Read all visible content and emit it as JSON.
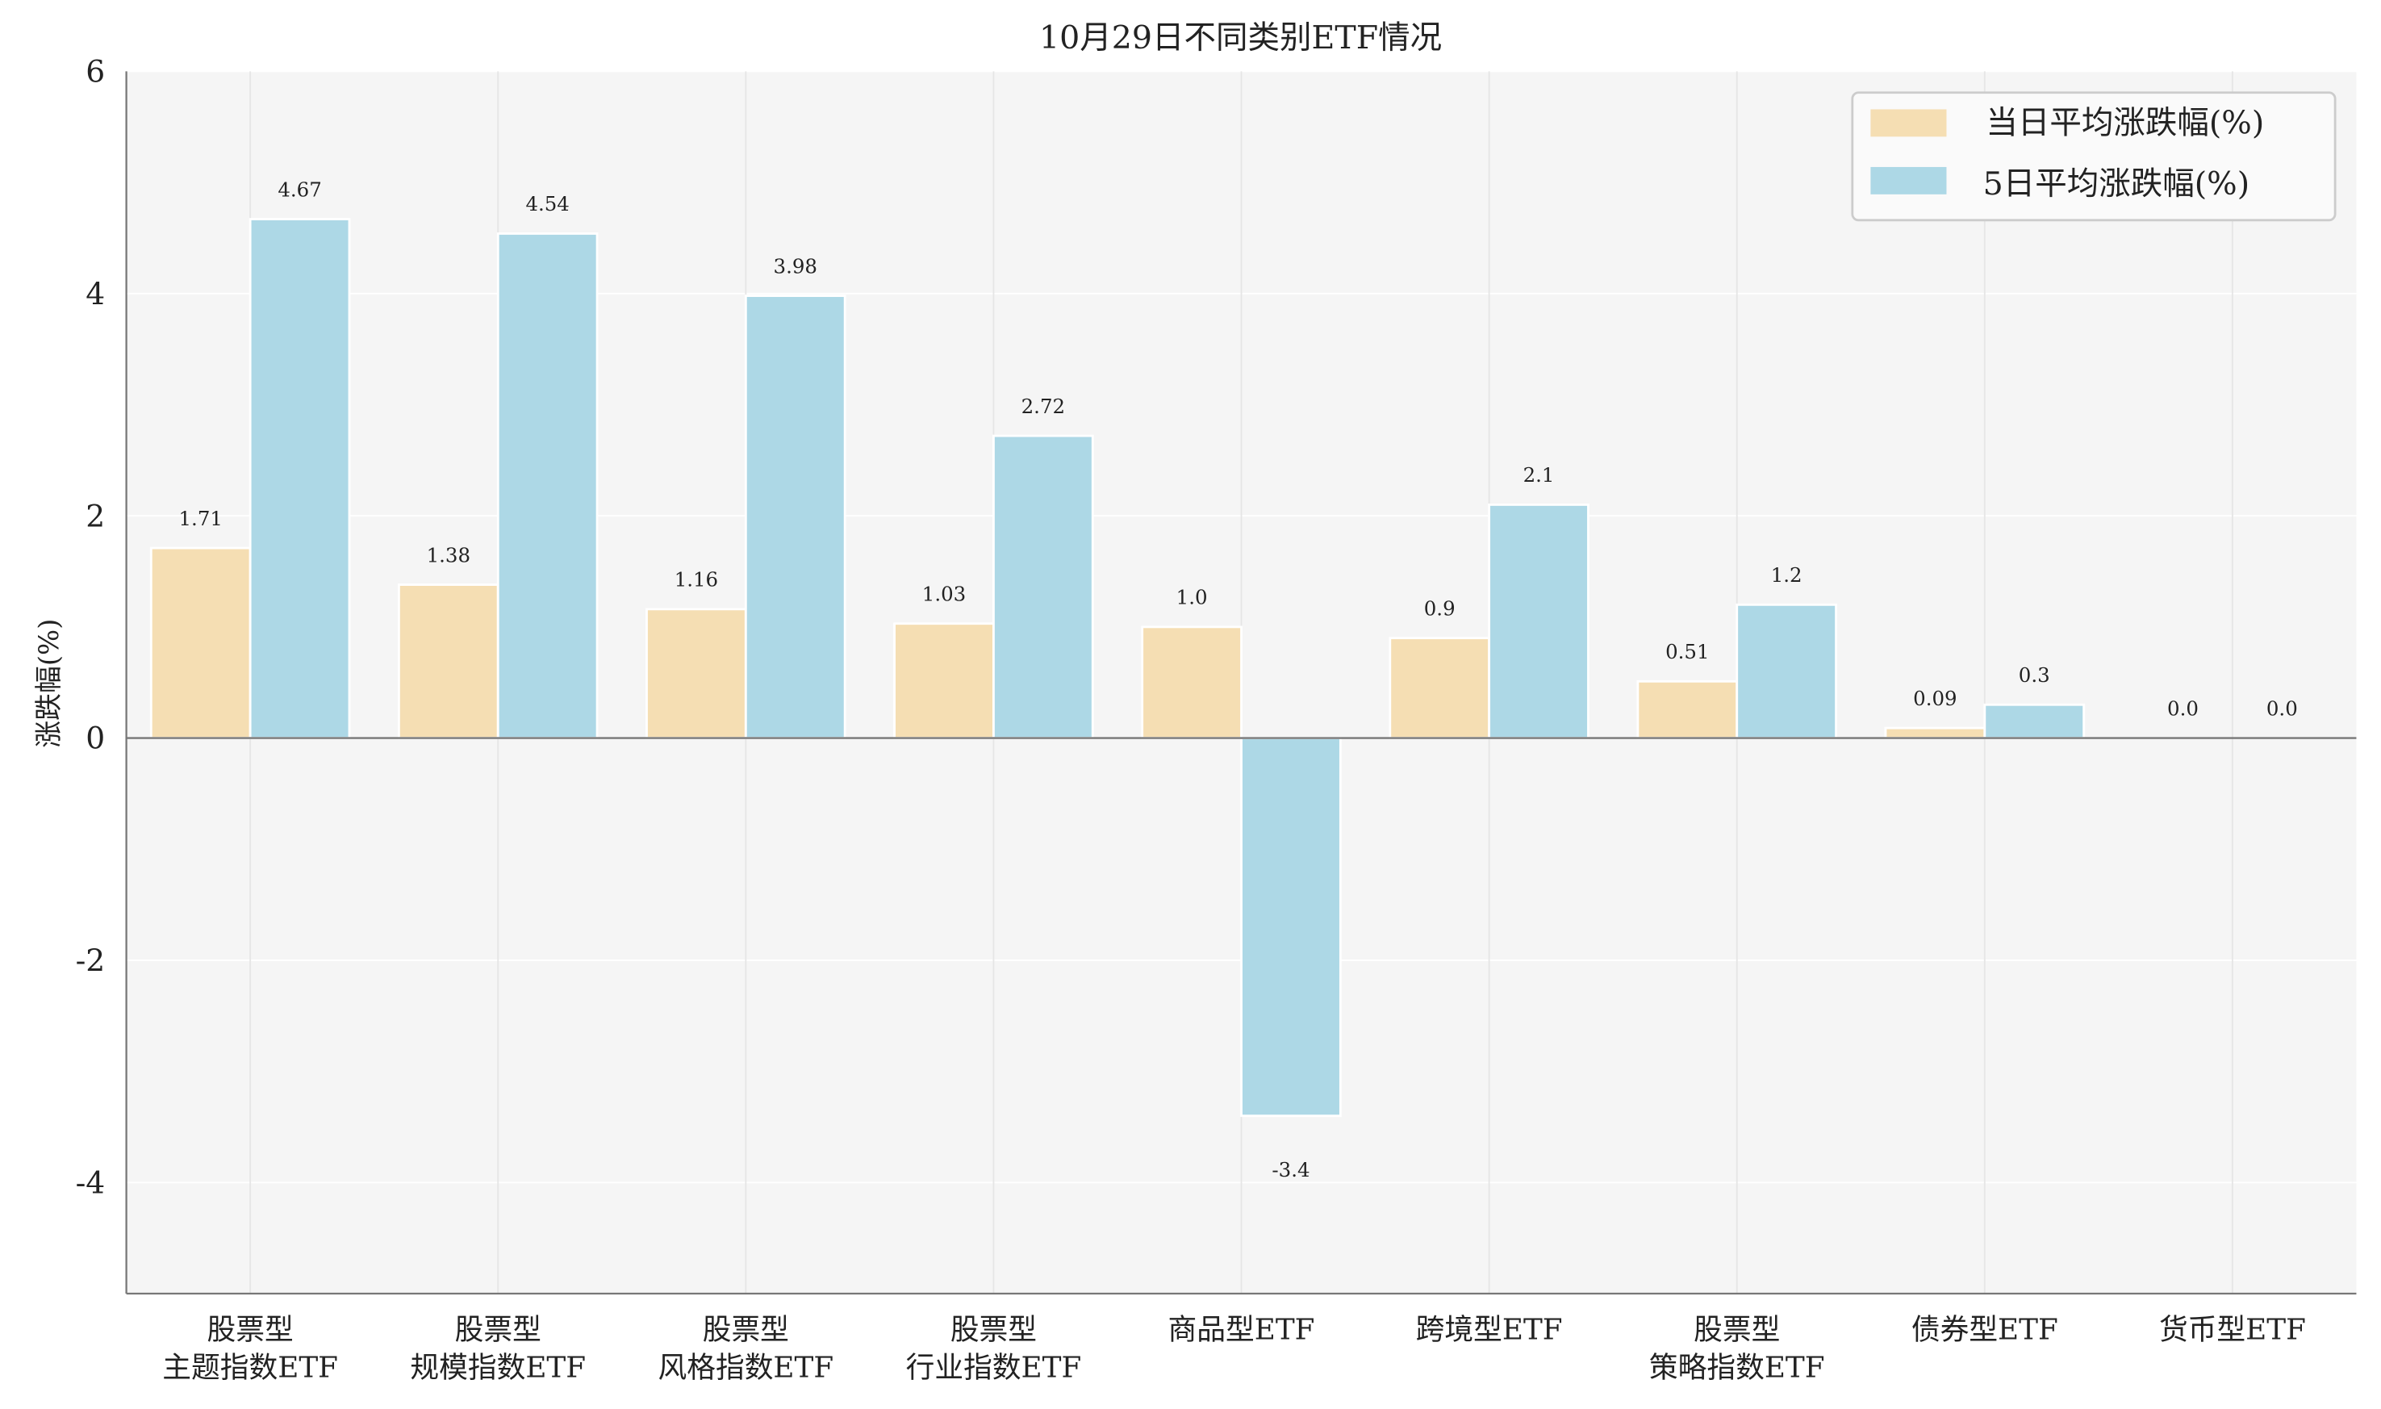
{
  "chart_data": {
    "type": "bar",
    "title": "10月29日不同类别ETF情况",
    "xlabel": "",
    "ylabel": "涨跌幅(%)",
    "ylim": [
      -5,
      6
    ],
    "yticks": [
      "-4",
      "-2",
      "0",
      "2",
      "4",
      "6"
    ],
    "ytick_values": [
      -4,
      -2,
      0,
      2,
      4,
      6
    ],
    "grid": true,
    "legend_position": "top-right",
    "categories": [
      [
        "股票型",
        "主题指数ETF"
      ],
      [
        "股票型",
        "规模指数ETF"
      ],
      [
        "股票型",
        "风格指数ETF"
      ],
      [
        "股票型",
        "行业指数ETF"
      ],
      [
        "商品型ETF"
      ],
      [
        "跨境型ETF"
      ],
      [
        "股票型",
        "策略指数ETF"
      ],
      [
        "债券型ETF"
      ],
      [
        "货币型ETF"
      ]
    ],
    "series": [
      {
        "name": "当日平均涨跌幅(%)",
        "color": "#f5deb3",
        "values": [
          1.71,
          1.38,
          1.16,
          1.03,
          1.0,
          0.9,
          0.51,
          0.09,
          0.0
        ],
        "labels": [
          "1.71",
          "1.38",
          "1.16",
          "1.03",
          "1.0",
          "0.9",
          "0.51",
          "0.09",
          "0.0"
        ]
      },
      {
        "name": "5日平均涨跌幅(%)",
        "color": "#add8e6",
        "values": [
          4.67,
          4.54,
          3.98,
          2.72,
          -3.4,
          2.1,
          1.2,
          0.3,
          0.0
        ],
        "labels": [
          "4.67",
          "4.54",
          "3.98",
          "2.72",
          "-3.4",
          "2.1",
          "1.2",
          "0.3",
          "0.0"
        ]
      }
    ]
  }
}
